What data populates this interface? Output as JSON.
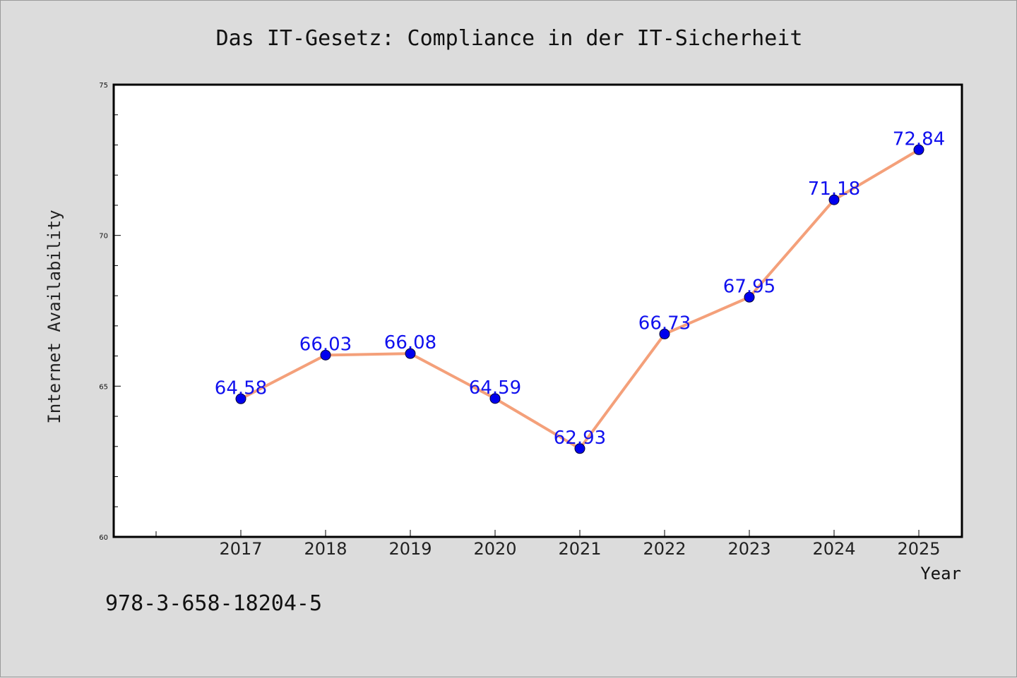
{
  "chart_data": {
    "type": "line",
    "title": "Das IT-Gesetz: Compliance in der IT-Sicherheit",
    "xlabel": "Year",
    "ylabel": "Internet Availability",
    "categories": [
      "2017",
      "2018",
      "2019",
      "2020",
      "2021",
      "2022",
      "2023",
      "2024",
      "2025"
    ],
    "series": [
      {
        "values": [
          64.58,
          66.03,
          66.08,
          64.59,
          62.93,
          66.73,
          67.95,
          71.18,
          72.84
        ],
        "labels": [
          "64.58",
          "66.03",
          "66.08",
          "64.59",
          "62.93",
          "66.73",
          "67.95",
          "71.18",
          "72.84"
        ]
      }
    ],
    "ylim": [
      60,
      75
    ],
    "yticks": [
      "60",
      "65",
      "70",
      "75"
    ],
    "grid": false,
    "line_color": "#f4a07a",
    "marker_color": "#0000ee"
  },
  "footer": {
    "isbn": "978-3-658-18204-5"
  }
}
